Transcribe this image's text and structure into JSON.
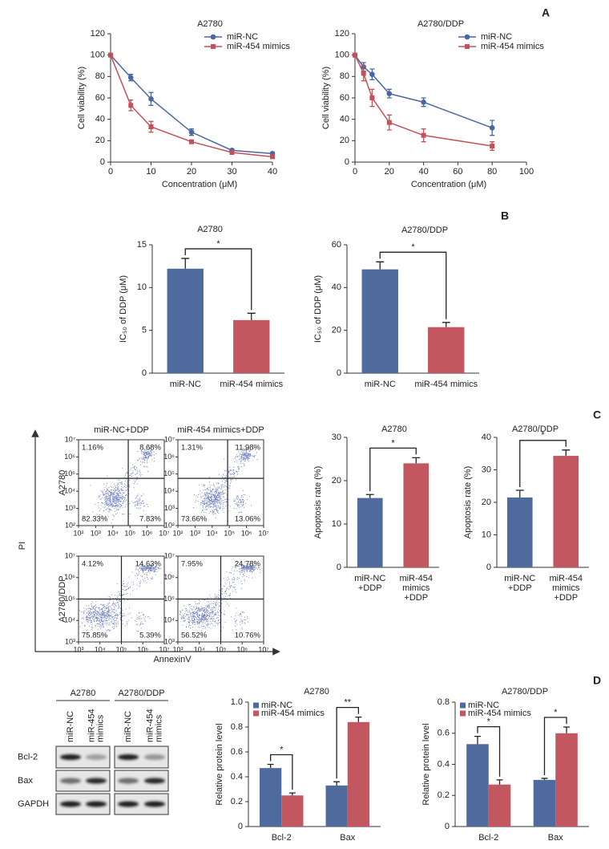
{
  "panel_labels": [
    "A",
    "B",
    "C",
    "D"
  ],
  "chart_data": [
    {
      "type": "line",
      "title": "A2780",
      "xlabel": "Concentration (μM)",
      "ylabel": "Cell viability (%)",
      "x": [
        0,
        5,
        10,
        20,
        30,
        40
      ],
      "xlim": [
        0,
        40
      ],
      "xticks": [
        0,
        10,
        20,
        30,
        40
      ],
      "ylim": [
        0,
        120
      ],
      "yticks": [
        0,
        20,
        40,
        60,
        80,
        100,
        120
      ],
      "legend": "upper right",
      "series": [
        {
          "name": "miR-NC",
          "color": "#4a67a1",
          "marker": "circle",
          "values": [
            100,
            79,
            59,
            28,
            11,
            8
          ],
          "errors": [
            0,
            3,
            6,
            3,
            1,
            1
          ]
        },
        {
          "name": "miR-454 mimics",
          "color": "#c4505a",
          "marker": "square",
          "values": [
            100,
            53,
            33,
            19,
            9,
            5
          ],
          "errors": [
            0,
            5,
            5,
            1,
            1,
            1
          ]
        }
      ]
    },
    {
      "type": "line",
      "title": "A2780/DDP",
      "xlabel": "Concentration (μM)",
      "ylabel": "Cell viability (%)",
      "x": [
        0,
        5,
        10,
        20,
        40,
        80
      ],
      "xlim": [
        0,
        100
      ],
      "xticks": [
        0,
        20,
        40,
        60,
        80,
        100
      ],
      "ylim": [
        0,
        120
      ],
      "yticks": [
        0,
        20,
        40,
        60,
        80,
        100,
        120
      ],
      "legend": "upper right",
      "series": [
        {
          "name": "miR-NC",
          "color": "#4a67a1",
          "marker": "circle",
          "values": [
            100,
            89,
            82,
            64,
            56,
            32
          ],
          "errors": [
            0,
            4,
            5,
            4,
            4,
            7
          ]
        },
        {
          "name": "miR-454 mimics",
          "color": "#c4505a",
          "marker": "square",
          "values": [
            100,
            83,
            60,
            37,
            25,
            15
          ],
          "errors": [
            0,
            7,
            8,
            7,
            6,
            4
          ]
        }
      ]
    },
    {
      "type": "bar",
      "title": "A2780",
      "ylabel": "IC₅₀ of DDP (μM)",
      "categories": [
        "miR-NC",
        "miR-454 mimics"
      ],
      "values": [
        12.2,
        6.2
      ],
      "errors": [
        1.2,
        0.8
      ],
      "colors": [
        "#4f6a9c",
        "#c2575f"
      ],
      "ylim": [
        0,
        15
      ],
      "yticks": [
        0,
        5,
        10,
        15
      ],
      "significance": "*"
    },
    {
      "type": "bar",
      "title": "A2780/DDP",
      "ylabel": "IC₅₀ of DDP (μM)",
      "categories": [
        "miR-NC",
        "miR-454 mimics"
      ],
      "values": [
        48.5,
        21.5
      ],
      "errors": [
        3.5,
        2.2
      ],
      "colors": [
        "#4f6a9c",
        "#c2575f"
      ],
      "ylim": [
        0,
        60
      ],
      "yticks": [
        0,
        20,
        40,
        60
      ],
      "significance": "*"
    },
    {
      "type": "flow",
      "columns": [
        "miR-NC+DDP",
        "miR-454 mimics+DDP"
      ],
      "rows": [
        "A2780",
        "A2780/DDP"
      ],
      "xlabel": "AnnexinV",
      "ylabel": "PI",
      "log": true,
      "plots": [
        {
          "xlim": [
            100,
            10000000
          ],
          "ylim": [
            100,
            10000000
          ],
          "xticks": [
            {
              "value": 100,
              "label": "10²"
            },
            {
              "value": 1000,
              "label": "10³"
            },
            {
              "value": 10000,
              "label": "10⁴"
            },
            {
              "value": 100000,
              "label": "10⁵"
            },
            {
              "value": 1000000,
              "label": "10⁶"
            },
            {
              "value": 10000000,
              "label": "10⁷"
            }
          ],
          "yticks": [
            {
              "value": 100,
              "label": "10²"
            },
            {
              "value": 1000,
              "label": "10³"
            },
            {
              "value": 10000,
              "label": "10⁴"
            },
            {
              "value": 100000,
              "label": "10⁵"
            },
            {
              "value": 1000000,
              "label": "10⁶"
            },
            {
              "value": 10000000,
              "label": "10⁷"
            }
          ],
          "values": [
            1.16,
            8.68,
            82.33,
            7.83
          ],
          "value_labels": [
            "1.16%",
            "8.68%",
            "82.33%",
            "7.83%"
          ]
        },
        {
          "xlim": [
            100,
            10000000
          ],
          "ylim": [
            100,
            10000000
          ],
          "xticks": [
            {
              "value": 100,
              "label": "10²"
            },
            {
              "value": 1000,
              "label": "10³"
            },
            {
              "value": 10000,
              "label": "10⁴"
            },
            {
              "value": 100000,
              "label": "10⁵"
            },
            {
              "value": 1000000,
              "label": "10⁶"
            },
            {
              "value": 10000000,
              "label": "10⁷"
            }
          ],
          "yticks": [
            {
              "value": 100,
              "label": "10²"
            },
            {
              "value": 1000,
              "label": "10³"
            },
            {
              "value": 10000,
              "label": "10⁴"
            },
            {
              "value": 100000,
              "label": "10⁵"
            },
            {
              "value": 1000000,
              "label": "10⁶"
            },
            {
              "value": 10000000,
              "label": "10⁷"
            }
          ],
          "values": [
            1.31,
            11.98,
            73.66,
            13.06
          ],
          "value_labels": [
            "1.31%",
            "11.98%",
            "73.66%",
            "13.06%"
          ]
        },
        {
          "xlim": [
            1000,
            10000000
          ],
          "ylim": [
            1000,
            10000000
          ],
          "xticks": [
            {
              "value": 1000,
              "label": "10³"
            },
            {
              "value": 10000,
              "label": "10⁴"
            },
            {
              "value": 100000,
              "label": "10⁵"
            },
            {
              "value": 1000000,
              "label": "10⁶"
            },
            {
              "value": 10000000,
              "label": "10⁷"
            }
          ],
          "yticks": [
            {
              "value": 1000,
              "label": "10³"
            },
            {
              "value": 10000,
              "label": "10⁴"
            },
            {
              "value": 100000,
              "label": "10⁵"
            },
            {
              "value": 1000000,
              "label": "10⁶"
            },
            {
              "value": 10000000,
              "label": "10⁷"
            }
          ],
          "values": [
            4.12,
            14.63,
            75.85,
            5.39
          ],
          "value_labels": [
            "4.12%",
            "14.63%",
            "75.85%",
            "5.39%"
          ]
        },
        {
          "xlim": [
            1000,
            10000000
          ],
          "ylim": [
            1000,
            10000000
          ],
          "xticks": [
            {
              "value": 1000,
              "label": "10³"
            },
            {
              "value": 10000,
              "label": "10⁴"
            },
            {
              "value": 100000,
              "label": "10⁵"
            },
            {
              "value": 1000000,
              "label": "10⁶"
            },
            {
              "value": 10000000,
              "label": "10⁷"
            }
          ],
          "yticks": [
            {
              "value": 1000,
              "label": "10³"
            },
            {
              "value": 10000,
              "label": "10⁴"
            },
            {
              "value": 100000,
              "label": "10⁵"
            },
            {
              "value": 1000000,
              "label": "10⁶"
            },
            {
              "value": 10000000,
              "label": "10⁷"
            }
          ],
          "values": [
            7.95,
            24.78,
            56.52,
            10.76
          ],
          "value_labels": [
            "7.95%",
            "24.78%",
            "56.52%",
            "10.76%"
          ]
        }
      ]
    },
    {
      "type": "bar",
      "title": "A2780",
      "ylabel": "Apoptosis rate (%)",
      "categories": [
        [
          "miR-NC",
          "+DDP"
        ],
        [
          "miR-454",
          "mimics",
          "+DDP"
        ]
      ],
      "values": [
        16,
        24
      ],
      "errors": [
        0.8,
        1.3
      ],
      "colors": [
        "#4f6a9c",
        "#c2575f"
      ],
      "ylim": [
        0,
        30
      ],
      "yticks": [
        0,
        10,
        20,
        30
      ],
      "significance": "*"
    },
    {
      "type": "bar",
      "title": "A2780/DDP",
      "ylabel": "Apoptosis rate (%)",
      "categories": [
        [
          "miR-NC",
          "+DDP"
        ],
        [
          "miR-454",
          "mimics",
          "+DDP"
        ]
      ],
      "values": [
        21.5,
        34.3
      ],
      "errors": [
        2.2,
        1.8
      ],
      "colors": [
        "#4f6a9c",
        "#c2575f"
      ],
      "ylim": [
        0,
        40
      ],
      "yticks": [
        0,
        10,
        20,
        30,
        40
      ],
      "significance": "*"
    },
    {
      "type": "grouped_bar",
      "title": "A2780",
      "ylabel": "Relative protein level",
      "categories": [
        "Bcl-2",
        "Bax"
      ],
      "ylim": [
        0,
        1
      ],
      "yticks": [
        0,
        0.2,
        0.4,
        0.6,
        0.8,
        {
          "value": 1,
          "label": "1.0"
        }
      ],
      "legend": "upper left",
      "series": [
        {
          "name": "miR-NC",
          "color": "#4f6a9c",
          "values": [
            0.47,
            0.33
          ],
          "errors": [
            0.03,
            0.03
          ]
        },
        {
          "name": "miR-454 mimics",
          "color": "#c2575f",
          "values": [
            0.25,
            0.84
          ],
          "errors": [
            0.02,
            0.04
          ]
        }
      ],
      "significance": [
        "*",
        "**"
      ]
    },
    {
      "type": "grouped_bar",
      "title": "A2780/DDP",
      "ylabel": "Relative protein level",
      "categories": [
        "Bcl-2",
        "Bax"
      ],
      "ylim": [
        0,
        0.8
      ],
      "yticks": [
        0,
        0.2,
        0.4,
        0.6,
        0.8
      ],
      "legend": "upper left",
      "series": [
        {
          "name": "miR-NC",
          "color": "#4f6a9c",
          "values": [
            0.53,
            0.3
          ],
          "errors": [
            0.05,
            0.01
          ]
        },
        {
          "name": "miR-454 mimics",
          "color": "#c2575f",
          "values": [
            0.27,
            0.6
          ],
          "errors": [
            0.03,
            0.04
          ]
        }
      ],
      "significance": [
        "*",
        "*"
      ]
    }
  ],
  "blot": {
    "groups": [
      "A2780",
      "A2780/DDP"
    ],
    "lanes": [
      [
        "miR-NC"
      ],
      [
        "miR-454",
        "mimics"
      ]
    ],
    "rows": [
      "Bcl-2",
      "Bax",
      "GAPDH"
    ]
  }
}
